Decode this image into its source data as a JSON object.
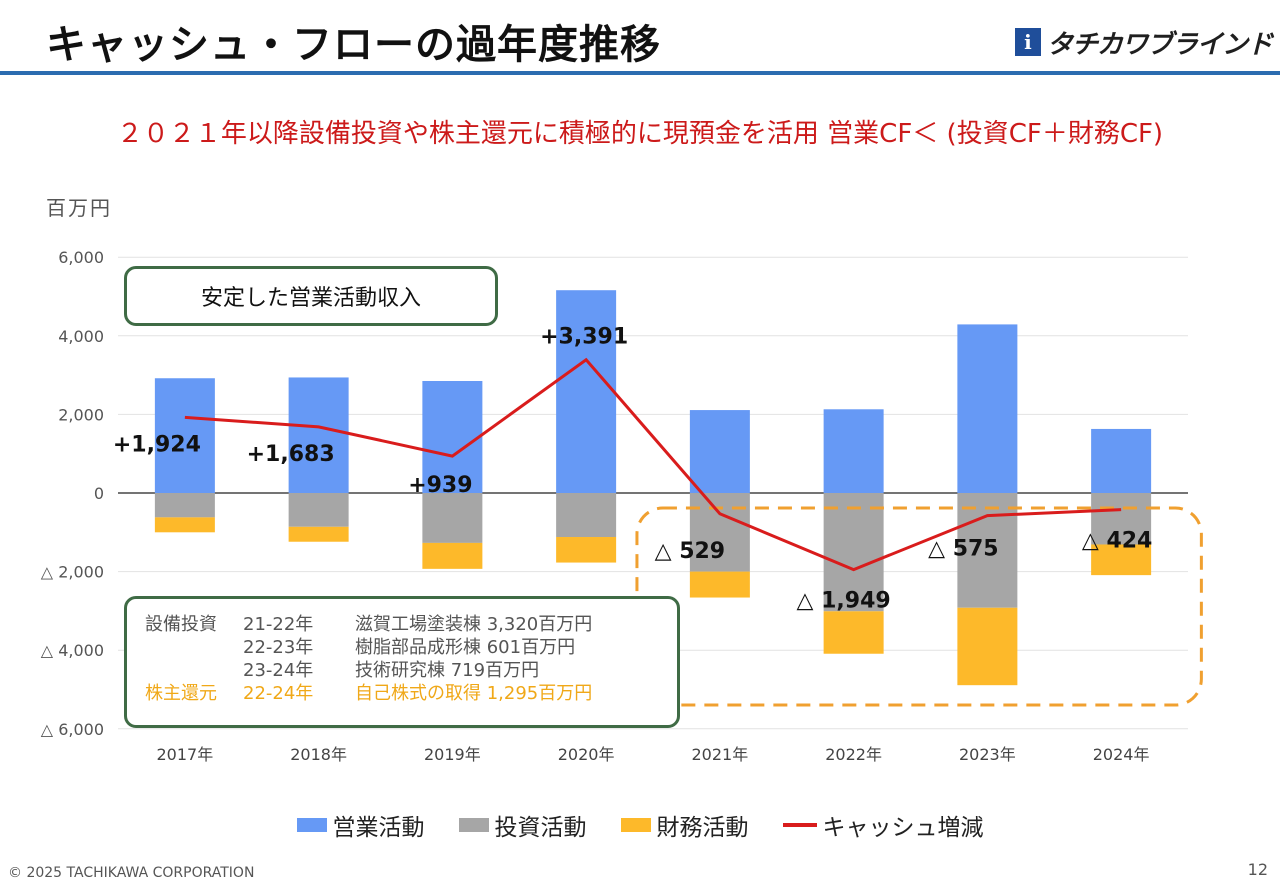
{
  "title": "キャッシュ・フローの過年度推移",
  "logo": {
    "mark": "i",
    "text": "タチカワブラインド"
  },
  "subtitle": "２０２１年以降設備投資や株主還元に積極的に現預金を活用  営業CF＜ (投資CF＋財務CF)",
  "unit_label": "百万円",
  "callout_top": "安定した営業活動収入",
  "callout_bottom": {
    "rows": [
      {
        "a": "設備投資",
        "b": "21-22年",
        "c": "滋賀工場塗装棟 3,320百万円",
        "style": "gray"
      },
      {
        "a": "",
        "b": "22-23年",
        "c": "樹脂部品成形棟 601百万円",
        "style": "gray"
      },
      {
        "a": "",
        "b": "23-24年",
        "c": "技術研究棟 719百万円",
        "style": "gray"
      },
      {
        "a": "株主還元",
        "b": "22-24年",
        "c": "自己株式の取得 1,295百万円",
        "style": "orange"
      }
    ]
  },
  "colors": {
    "operating": "#6699f5",
    "investing": "#a6a6a6",
    "financing": "#fdb92a",
    "cash": "#d91c1c",
    "highlight": "#f0a030"
  },
  "chart_data": {
    "type": "bar",
    "stacked": true,
    "categories": [
      "2017年",
      "2018年",
      "2019年",
      "2020年",
      "2021年",
      "2022年",
      "2023年",
      "2024年"
    ],
    "ylim": [
      -6000,
      6000
    ],
    "yticks": [
      {
        "value": 6000,
        "label": "6,000"
      },
      {
        "value": 4000,
        "label": "4,000"
      },
      {
        "value": 2000,
        "label": "2,000"
      },
      {
        "value": 0,
        "label": "0"
      },
      {
        "value": -2000,
        "label": "△ 2,000"
      },
      {
        "value": -4000,
        "label": "△ 4,000"
      },
      {
        "value": -6000,
        "label": "△ 6,000"
      }
    ],
    "series": [
      {
        "name": "営業活動",
        "kind": "bar",
        "values": [
          2920,
          2940,
          2850,
          5160,
          2110,
          2130,
          4290,
          1630
        ]
      },
      {
        "name": "投資活動",
        "kind": "bar",
        "values": [
          -620,
          -860,
          -1270,
          -1120,
          -2000,
          -3010,
          -2920,
          -1310
        ]
      },
      {
        "name": "財務活動",
        "kind": "bar",
        "values": [
          -380,
          -380,
          -660,
          -650,
          -660,
          -1080,
          -1970,
          -780
        ]
      },
      {
        "name": "キャッシュ増減",
        "kind": "line",
        "values": [
          1924,
          1683,
          939,
          3391,
          -529,
          -1949,
          -575,
          -424
        ]
      }
    ],
    "data_labels": [
      "+1,924",
      "+1,683",
      "+939",
      "+3,391",
      "△ 529",
      "△ 1,949",
      "△ 575",
      "△ 424"
    ],
    "grid": true,
    "legend": "bottom"
  },
  "footer": "© 2025 TACHIKAWA CORPORATION",
  "page_number": "12"
}
